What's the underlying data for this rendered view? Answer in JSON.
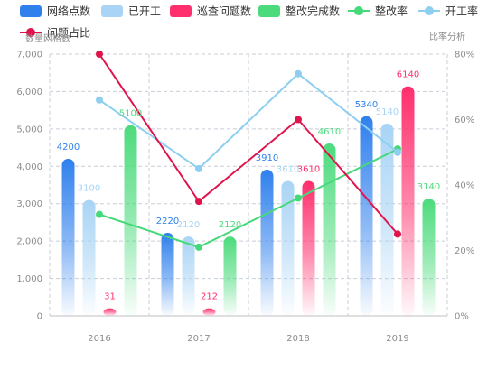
{
  "chart_data": {
    "type": "bar",
    "categories": [
      "2016",
      "2017",
      "2018",
      "2019"
    ],
    "series": [
      {
        "name": "网络点数",
        "type": "bar",
        "axis": "left",
        "color": "#2f80ed",
        "values": [
          4200,
          2220,
          3910,
          5340
        ]
      },
      {
        "name": "已开工",
        "type": "bar",
        "axis": "left",
        "color": "#a9d4f5",
        "values": [
          3100,
          2120,
          3610,
          5140
        ]
      },
      {
        "name": "巡查问题数",
        "type": "bar",
        "axis": "left",
        "color": "#ff2f6d",
        "values": [
          31,
          212,
          3610,
          6140
        ]
      },
      {
        "name": "整改完成数",
        "type": "bar",
        "axis": "left",
        "color": "#4cdb7c",
        "values": [
          5100,
          2120,
          4610,
          3140
        ]
      },
      {
        "name": "整改率",
        "type": "line",
        "axis": "right",
        "color": "#45d97a",
        "values": [
          31,
          21,
          36,
          51
        ]
      },
      {
        "name": "开工率",
        "type": "line",
        "axis": "right",
        "color": "#8ccff0",
        "values": [
          66,
          45,
          74,
          50
        ]
      },
      {
        "name": "问题占比",
        "type": "line",
        "axis": "right",
        "color": "#e0144c",
        "values": [
          80,
          35,
          60,
          25
        ]
      }
    ],
    "data_labels": {
      "网络点数": [
        "4200",
        "2220",
        "3910",
        "5340"
      ],
      "已开工": [
        "3100",
        "2120",
        "3610",
        "5140"
      ],
      "巡查问题数": [
        "31",
        "212",
        "3610",
        "6140"
      ],
      "整改完成数": [
        "5100",
        "2120",
        "4610",
        "3140"
      ]
    },
    "y_left": {
      "label": "数量网格数",
      "ticks": [
        "0",
        "1,000",
        "2,000",
        "3,000",
        "4,000",
        "5,000",
        "6,000",
        "7,000"
      ],
      "range": [
        0,
        7000
      ]
    },
    "y_right": {
      "label": "比率分析",
      "ticks": [
        "0%",
        "20%",
        "40%",
        "60%",
        "80%"
      ],
      "range": [
        0,
        80
      ]
    },
    "grid": true,
    "legend": "top"
  }
}
